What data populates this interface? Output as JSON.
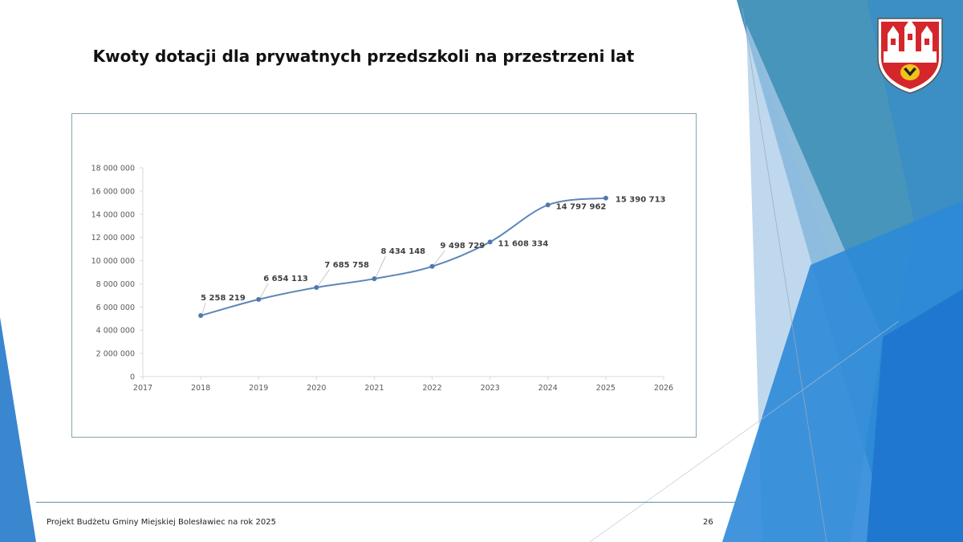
{
  "slide": {
    "title": "Kwoty dotacji dla prywatnych przedszkoli na przestrzeni lat",
    "footer": "Projekt Budżetu Gminy Miejskiej Bolesławiec na rok 2025",
    "page_number": "26",
    "logo_icon": "boleslawiec-coat-of-arms-icon"
  },
  "colors": {
    "line": "#5b86b8",
    "marker": "#4e79ad",
    "axis": "#d9d9d9",
    "tick_text": "#595959",
    "label_text": "#404040",
    "accent_blue": "#2f86d4",
    "accent_light": "#9fc7e8"
  },
  "chart_data": {
    "type": "line",
    "title": "",
    "xlabel": "",
    "ylabel": "",
    "smooth": true,
    "grid": false,
    "legend": "none",
    "x_ticks": [
      "2017",
      "2018",
      "2019",
      "2020",
      "2021",
      "2022",
      "2023",
      "2024",
      "2025",
      "2026"
    ],
    "xlim": [
      2017,
      2026
    ],
    "y_ticks": [
      "0",
      "2 000 000",
      "4 000 000",
      "6 000 000",
      "8 000 000",
      "10 000 000",
      "12 000 000",
      "14 000 000",
      "16 000 000",
      "18 000 000"
    ],
    "ylim": [
      0,
      18000000
    ],
    "series": [
      {
        "x": [
          2018,
          2019,
          2020,
          2021,
          2022,
          2023,
          2024,
          2025
        ],
        "values": [
          5258219,
          6654113,
          7685758,
          8434148,
          9498729,
          11608334,
          14797962,
          15390713
        ],
        "data_labels": [
          "5 258 219",
          "6 654 113",
          "7 685 758",
          "8 434 148",
          "9 498 729",
          "11 608 334",
          "14 797 962",
          "15 390 713"
        ]
      }
    ]
  }
}
